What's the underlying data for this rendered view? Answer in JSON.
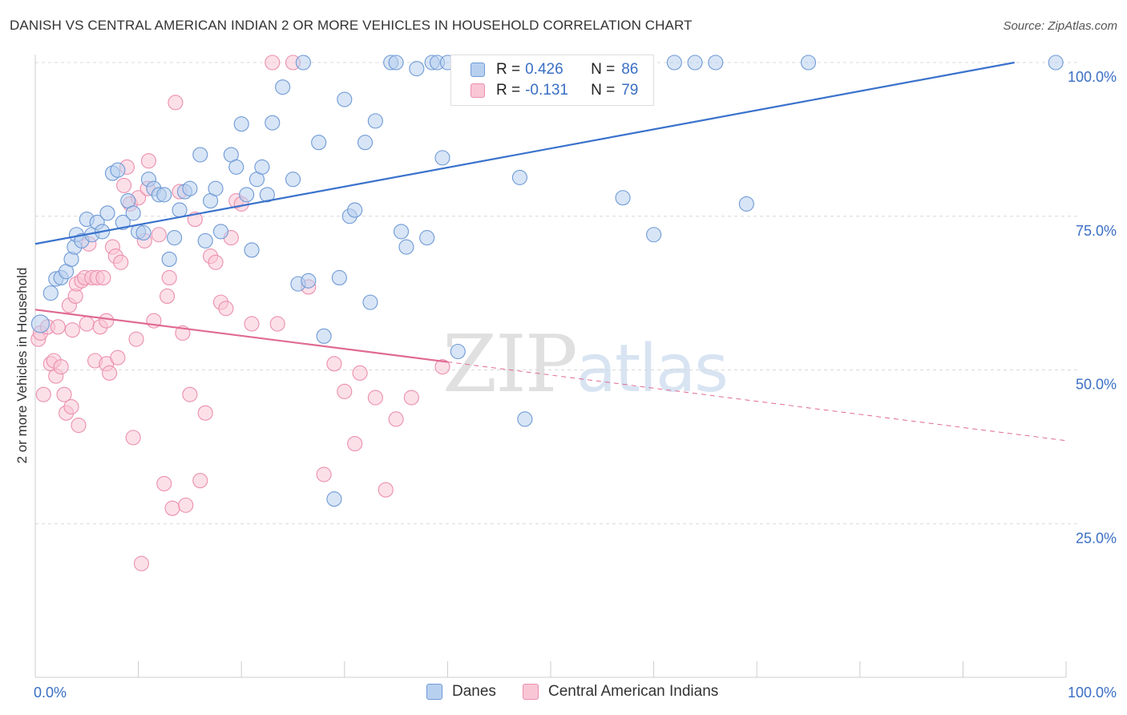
{
  "title": "DANISH VS CENTRAL AMERICAN INDIAN 2 OR MORE VEHICLES IN HOUSEHOLD CORRELATION CHART",
  "source": "Source: ZipAtlas.com",
  "watermark": {
    "zip": "ZIP",
    "atlas": "atlas"
  },
  "legend": {
    "danes": {
      "r_label": "R =",
      "r_value": "0.426",
      "n_label": "N =",
      "n_value": "86"
    },
    "cai": {
      "r_label": "R =",
      "r_value": "-0.131",
      "n_label": "N =",
      "n_value": "79"
    }
  },
  "bottom_legend": {
    "danes": "Danes",
    "cai": "Central American Indians"
  },
  "colors": {
    "danes_fill": "#b8d0ef",
    "danes_stroke": "#6f9ad6",
    "danes_line": "#3a72cc",
    "cai_fill": "#f9c6d6",
    "cai_stroke": "#eb8fae",
    "cai_line": "#e06a94",
    "tick_text": "#3a6fc4",
    "grid": "#d8d8d8"
  },
  "chart_data": {
    "type": "scatter",
    "title": "DANISH VS CENTRAL AMERICAN INDIAN 2 OR MORE VEHICLES IN HOUSEHOLD CORRELATION CHART",
    "xlabel": "",
    "ylabel": "2 or more Vehicles in Household",
    "xlim": [
      0,
      100
    ],
    "ylim": [
      0,
      100
    ],
    "x_tick_labels": [
      {
        "value": 0,
        "label": "0.0%"
      },
      {
        "value": 100,
        "label": "100.0%"
      }
    ],
    "y_tick_labels": [
      {
        "value": 100,
        "label": "100.0%"
      },
      {
        "value": 75,
        "label": "75.0%"
      },
      {
        "value": 50,
        "label": "50.0%"
      },
      {
        "value": 25,
        "label": "25.0%"
      }
    ],
    "grid": true,
    "legend_position": "top-center",
    "series": [
      {
        "name": "Danes",
        "points": [
          [
            0.5,
            57.5
          ],
          [
            1.5,
            62.5
          ],
          [
            2,
            64.8
          ],
          [
            2.5,
            65
          ],
          [
            3,
            66
          ],
          [
            3.5,
            68
          ],
          [
            3.8,
            70
          ],
          [
            4,
            72
          ],
          [
            4.5,
            71
          ],
          [
            5,
            74.5
          ],
          [
            5.5,
            72
          ],
          [
            6,
            74
          ],
          [
            6.5,
            72.5
          ],
          [
            7,
            75.5
          ],
          [
            7.5,
            82
          ],
          [
            8,
            82.5
          ],
          [
            8.5,
            74
          ],
          [
            9,
            77.5
          ],
          [
            9.5,
            75.5
          ],
          [
            10,
            72.5
          ],
          [
            10.5,
            72.3
          ],
          [
            11,
            81
          ],
          [
            11.5,
            79.5
          ],
          [
            12,
            78.5
          ],
          [
            12.5,
            78.5
          ],
          [
            13,
            68
          ],
          [
            13.5,
            71.5
          ],
          [
            14,
            76
          ],
          [
            14.5,
            79
          ],
          [
            15,
            79.5
          ],
          [
            16,
            85
          ],
          [
            16.5,
            71
          ],
          [
            17,
            77.5
          ],
          [
            17.5,
            79.5
          ],
          [
            18,
            72.5
          ],
          [
            19,
            85
          ],
          [
            19.5,
            83
          ],
          [
            20,
            90
          ],
          [
            20.5,
            78.5
          ],
          [
            21,
            69.5
          ],
          [
            21.5,
            81
          ],
          [
            22,
            83
          ],
          [
            22.5,
            78.5
          ],
          [
            23,
            90.2
          ],
          [
            24,
            96
          ],
          [
            25,
            81
          ],
          [
            25.5,
            64
          ],
          [
            26,
            100
          ],
          [
            26.5,
            64.5
          ],
          [
            27.5,
            87
          ],
          [
            28,
            55.5
          ],
          [
            29,
            29
          ],
          [
            29.5,
            65
          ],
          [
            30,
            94
          ],
          [
            30.5,
            75
          ],
          [
            31,
            76
          ],
          [
            32,
            87
          ],
          [
            32.5,
            61
          ],
          [
            33,
            90.5
          ],
          [
            34.5,
            100
          ],
          [
            35,
            100
          ],
          [
            35.5,
            72.5
          ],
          [
            36,
            70
          ],
          [
            37,
            99
          ],
          [
            38,
            71.5
          ],
          [
            38.5,
            100
          ],
          [
            39,
            100
          ],
          [
            39.5,
            84.5
          ],
          [
            40,
            100
          ],
          [
            41,
            53
          ],
          [
            46,
            100
          ],
          [
            47,
            81.3
          ],
          [
            47.5,
            42
          ],
          [
            54,
            100
          ],
          [
            54.5,
            100
          ],
          [
            54.7,
            100
          ],
          [
            54.9,
            100
          ],
          [
            54.95,
            100
          ],
          [
            54.99,
            100
          ],
          [
            57,
            78
          ],
          [
            60,
            72
          ],
          [
            62,
            100
          ],
          [
            64,
            100
          ],
          [
            66,
            100
          ],
          [
            69,
            77
          ],
          [
            75,
            100
          ],
          [
            99,
            100
          ],
          [
            55.5,
            100
          ]
        ],
        "trend": {
          "x0": 0,
          "y0": 70.5,
          "x1": 95,
          "y1": 100
        }
      },
      {
        "name": "Central American Indians",
        "points": [
          [
            0.3,
            55
          ],
          [
            0.5,
            56
          ],
          [
            0.8,
            46
          ],
          [
            1.2,
            57
          ],
          [
            1.5,
            51
          ],
          [
            1.8,
            51.5
          ],
          [
            2,
            49
          ],
          [
            2.2,
            57
          ],
          [
            2.5,
            50.5
          ],
          [
            2.8,
            46
          ],
          [
            3,
            43
          ],
          [
            3.3,
            60.5
          ],
          [
            3.6,
            56.5
          ],
          [
            3.9,
            62
          ],
          [
            4,
            64
          ],
          [
            4.2,
            41
          ],
          [
            4.5,
            64.5
          ],
          [
            4.8,
            65
          ],
          [
            5,
            57.5
          ],
          [
            5.2,
            70.5
          ],
          [
            5.5,
            65
          ],
          [
            5.8,
            51.5
          ],
          [
            6,
            65
          ],
          [
            6.3,
            57
          ],
          [
            6.6,
            65
          ],
          [
            6.9,
            51
          ],
          [
            7.2,
            49.5
          ],
          [
            7.5,
            70
          ],
          [
            7.8,
            68.5
          ],
          [
            8,
            52
          ],
          [
            8.3,
            67.5
          ],
          [
            8.6,
            80
          ],
          [
            8.9,
            83
          ],
          [
            9.2,
            77
          ],
          [
            9.5,
            39
          ],
          [
            9.8,
            55
          ],
          [
            10,
            78
          ],
          [
            10.3,
            18.5
          ],
          [
            10.6,
            71
          ],
          [
            10.9,
            79.5
          ],
          [
            11,
            84
          ],
          [
            11.5,
            58
          ],
          [
            12,
            72
          ],
          [
            12.5,
            31.5
          ],
          [
            13,
            65
          ],
          [
            13.3,
            27.5
          ],
          [
            13.6,
            93.5
          ],
          [
            14,
            79
          ],
          [
            14.3,
            56
          ],
          [
            14.6,
            28
          ],
          [
            15,
            46
          ],
          [
            15.5,
            74.5
          ],
          [
            16,
            32
          ],
          [
            16.5,
            43
          ],
          [
            17,
            68.5
          ],
          [
            17.5,
            67.5
          ],
          [
            18,
            61
          ],
          [
            18.5,
            60
          ],
          [
            19,
            71.5
          ],
          [
            19.5,
            77.5
          ],
          [
            20,
            77
          ],
          [
            21,
            57.5
          ],
          [
            23,
            100
          ],
          [
            23.5,
            57.5
          ],
          [
            25,
            100
          ],
          [
            26.5,
            63.5
          ],
          [
            28,
            33
          ],
          [
            29,
            51
          ],
          [
            30,
            46.5
          ],
          [
            31,
            38
          ],
          [
            31.5,
            49.5
          ],
          [
            33,
            45.5
          ],
          [
            34,
            30.5
          ],
          [
            35,
            42
          ],
          [
            36.5,
            45.5
          ],
          [
            39.5,
            50.5
          ],
          [
            3.5,
            44
          ],
          [
            6.9,
            58
          ],
          [
            12.8,
            62
          ]
        ],
        "trend": {
          "x0": 0,
          "y0": 59.8,
          "x1": 40,
          "y1": 51.3
        },
        "trend_dashed": {
          "x0": 40,
          "y0": 51.3,
          "x1": 100,
          "y1": 38.5
        }
      }
    ]
  }
}
